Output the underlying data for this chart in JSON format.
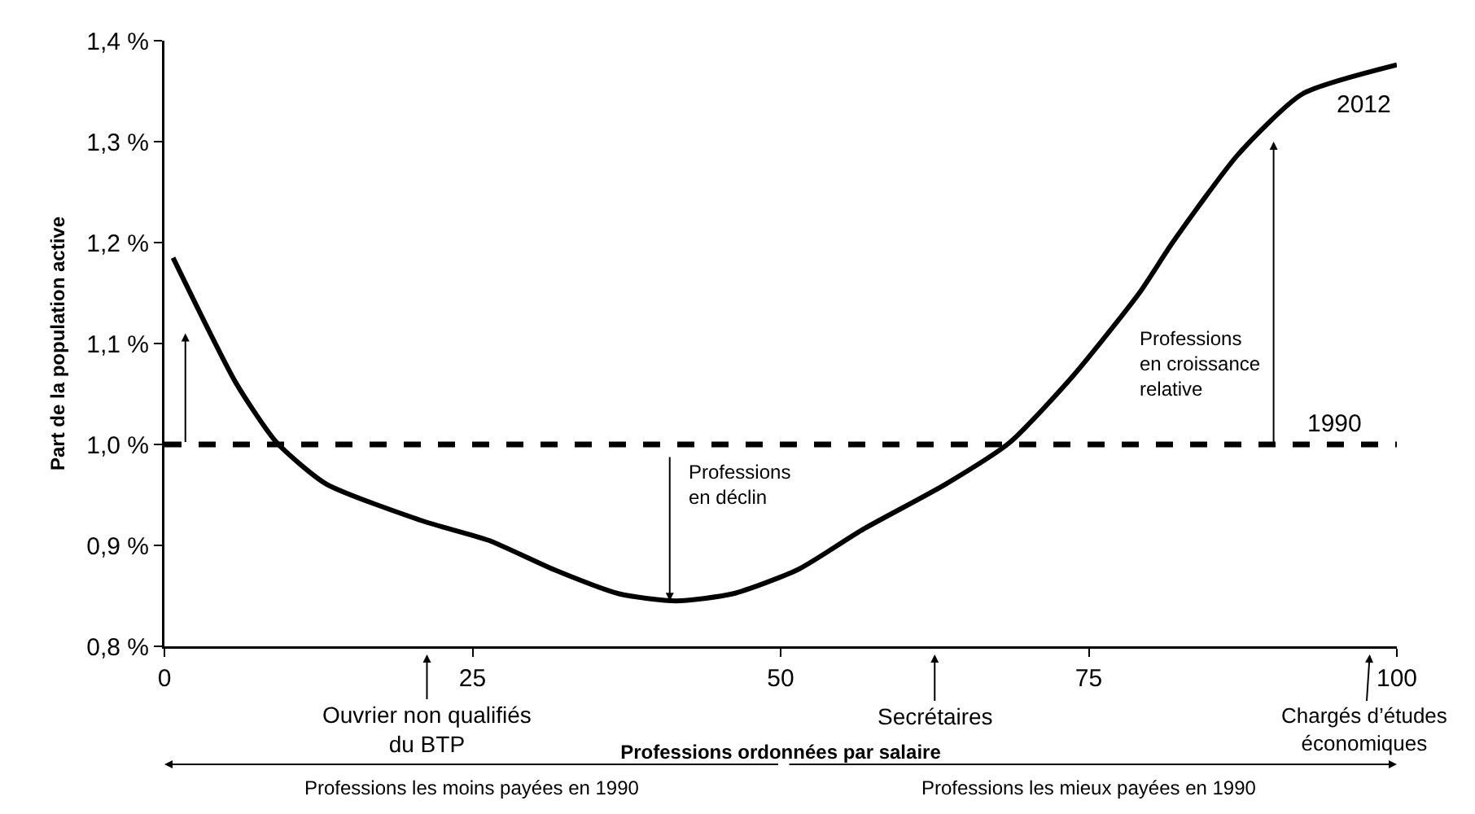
{
  "chart_data": {
    "type": "line",
    "ylabel": "Part de la population active",
    "xlabel": "Professions ordonnées par salaire",
    "series": [
      {
        "name": "2012",
        "color": "#000000",
        "line_style": "solid",
        "x": [
          0.7,
          5.8,
          9.1,
          13.1,
          21,
          26.3,
          31.6,
          36.9,
          41.5,
          46.1,
          51.4,
          56.7,
          63.3,
          68.6,
          73.8,
          79.1,
          81.8,
          87.1,
          92.3,
          100
        ],
        "values": [
          1.185,
          1.061,
          1.002,
          0.961,
          0.924,
          0.905,
          0.876,
          0.852,
          0.845,
          0.852,
          0.876,
          0.916,
          0.96,
          1.002,
          1.069,
          1.15,
          1.2,
          1.287,
          1.347,
          1.376
        ]
      },
      {
        "name": "1990",
        "color": "#000000",
        "line_style": "dashed",
        "x": [
          0,
          100
        ],
        "values": [
          1.0,
          1.0
        ]
      }
    ],
    "annotations": [
      {
        "text": "Professions\nen déclin",
        "x": 41,
        "y": 0.845
      },
      "Professions\nen croissance\nrelative",
      "Ouvrier non qualifiés\ndu BTP",
      "Secrétaires",
      "Chargés d’études\néconomiques",
      "Professions les moins payées en 1990",
      "Professions les mieux payées en 1990"
    ],
    "xlim": [
      0,
      100
    ],
    "xticks": [
      0,
      25,
      50,
      75,
      100
    ],
    "ylim": [
      0.8,
      1.4
    ],
    "yticks": [
      {
        "value": 0.8,
        "label": "0,8 %"
      },
      {
        "value": 0.9,
        "label": "0,9 %"
      },
      {
        "value": 1.0,
        "label": "1,0 %"
      },
      {
        "value": 1.1,
        "label": "1,1 %"
      },
      {
        "value": 1.2,
        "label": "1,2 %"
      },
      {
        "value": 1.3,
        "label": "1,3 %"
      },
      {
        "value": 1.4,
        "label": "1,4 %"
      }
    ],
    "grid": false,
    "legend": false
  }
}
